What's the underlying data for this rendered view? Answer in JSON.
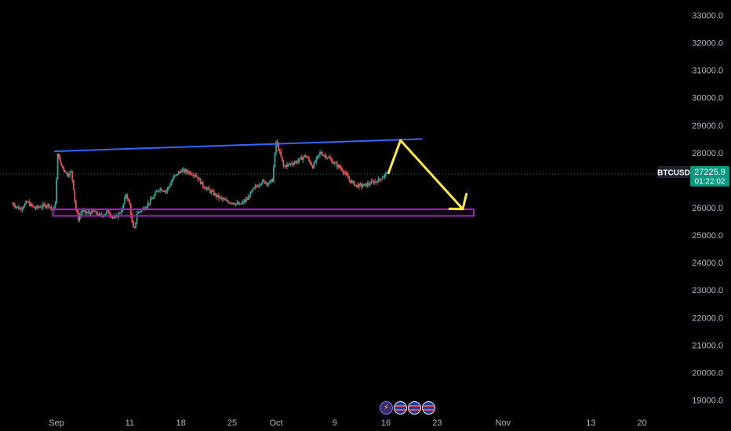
{
  "chart_data": {
    "type": "candlestick",
    "symbol": "BTCUSD",
    "last_price": "27225.9",
    "countdown": "01:22:02",
    "ylim": [
      18700,
      33300
    ],
    "y_ticks": [
      "19000.0",
      "20000.0",
      "21000.0",
      "22000.0",
      "23000.0",
      "24000.0",
      "25000.0",
      "26000.0",
      "27000.0",
      "28000.0",
      "29000.0",
      "30000.0",
      "31000.0",
      "32000.0",
      "33000.0"
    ],
    "x_ticks": [
      {
        "label": "Sep",
        "day": 0
      },
      {
        "label": "11",
        "day": 10
      },
      {
        "label": "18",
        "day": 17
      },
      {
        "label": "25",
        "day": 24
      },
      {
        "label": "Oct",
        "day": 30
      },
      {
        "label": "9",
        "day": 38
      },
      {
        "label": "16",
        "day": 45
      },
      {
        "label": "23",
        "day": 52
      },
      {
        "label": "Nov",
        "day": 61
      },
      {
        "label": "13",
        "day": 73
      },
      {
        "label": "20",
        "day": 80
      }
    ],
    "x_anchor": {
      "day_a": 0,
      "day_b": 45
    },
    "price_path": [
      [
        -6,
        26150
      ],
      [
        -5,
        25950
      ],
      [
        -4,
        26200
      ],
      [
        -3,
        25980
      ],
      [
        -2,
        26050
      ],
      [
        -1,
        26100
      ],
      [
        -0.5,
        25900
      ],
      [
        -0.2,
        26050
      ],
      [
        0,
        27000
      ],
      [
        0.2,
        28100
      ],
      [
        0.5,
        27600
      ],
      [
        1,
        27400
      ],
      [
        1.5,
        27200
      ],
      [
        2,
        27300
      ],
      [
        2.3,
        26800
      ],
      [
        2.6,
        26000
      ],
      [
        3,
        25600
      ],
      [
        3.5,
        25900
      ],
      [
        4,
        25800
      ],
      [
        5,
        25850
      ],
      [
        6,
        25700
      ],
      [
        7,
        25850
      ],
      [
        8,
        25600
      ],
      [
        9,
        25950
      ],
      [
        9.5,
        26500
      ],
      [
        10,
        26100
      ],
      [
        10.3,
        25500
      ],
      [
        10.6,
        25100
      ],
      [
        11,
        25800
      ],
      [
        12,
        26000
      ],
      [
        13,
        26300
      ],
      [
        14,
        26700
      ],
      [
        15,
        26600
      ],
      [
        16,
        27100
      ],
      [
        17,
        27350
      ],
      [
        18,
        27300
      ],
      [
        19,
        27200
      ],
      [
        20,
        26800
      ],
      [
        21,
        26600
      ],
      [
        22,
        26400
      ],
      [
        23,
        26250
      ],
      [
        24,
        26200
      ],
      [
        25,
        26100
      ],
      [
        26,
        26300
      ],
      [
        27,
        26700
      ],
      [
        28,
        26950
      ],
      [
        29,
        26900
      ],
      [
        29.5,
        27000
      ],
      [
        30,
        28400
      ],
      [
        30.5,
        28000
      ],
      [
        31,
        27500
      ],
      [
        32,
        27600
      ],
      [
        33,
        27700
      ],
      [
        34,
        27900
      ],
      [
        35,
        27500
      ],
      [
        36,
        28000
      ],
      [
        37,
        27850
      ],
      [
        38,
        27600
      ],
      [
        39,
        27400
      ],
      [
        40,
        27000
      ],
      [
        41,
        26800
      ],
      [
        42,
        26800
      ],
      [
        43,
        26900
      ],
      [
        44,
        27000
      ],
      [
        45,
        27225.9
      ]
    ],
    "annotations": {
      "resistance_trendline": {
        "color": "#3366ff",
        "from": [
          -0.3,
          28050
        ],
        "to": [
          50,
          28500
        ]
      },
      "support_zone": {
        "color": "#9c27b0",
        "from_day": -0.5,
        "to_day": 57,
        "price_low": 25700,
        "price_high": 25940
      },
      "projection_path": {
        "color": "#ffeb3b",
        "points": [
          [
            45.3,
            27225.9
          ],
          [
            47,
            28450
          ],
          [
            55.5,
            25950
          ]
        ],
        "arrowhead": [
          [
            53.7,
            25960
          ],
          [
            55.5,
            25950
          ],
          [
            56,
            26500
          ]
        ]
      }
    },
    "colors": {
      "up": "#26a69a",
      "down": "#ef5350",
      "axis_text": "#b2b5be",
      "price_badge": "#089981",
      "current_price_line": "#26a69a"
    },
    "grid": false,
    "legend": "none"
  },
  "event_markers": [
    {
      "name": "lightning-icon",
      "glyph": "⚡"
    },
    {
      "name": "us-flag-icon",
      "glyph": ""
    },
    {
      "name": "us-flag-icon",
      "glyph": ""
    },
    {
      "name": "us-flag-icon",
      "glyph": ""
    }
  ]
}
